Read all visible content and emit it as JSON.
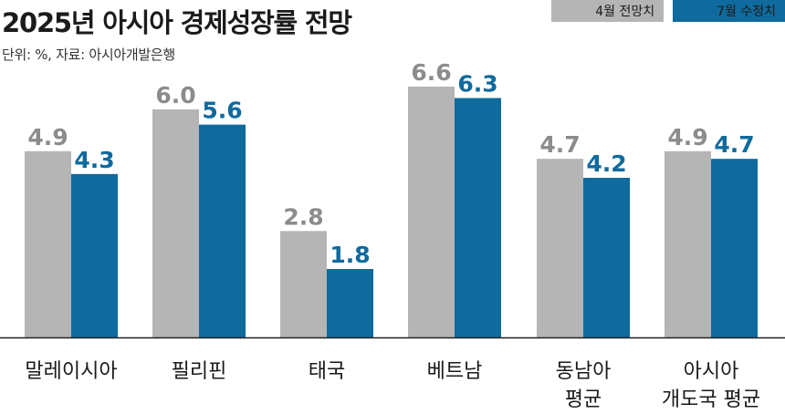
{
  "header": {
    "title": "2025년 아시아 경제성장률 전망",
    "subtitle": "단위: %, 자료: 아시아개발은행"
  },
  "colors": {
    "prev": "#b5b5b5",
    "revised": "#0f6a9d",
    "prev_label": "#8c8c8c",
    "revised_label": "#0f6a9d"
  },
  "chart_data": {
    "type": "bar",
    "title": "2025년 아시아 경제성장률 전망",
    "subtitle": "단위: %, 자료: 아시아개발은행",
    "categories": [
      "말레이시아",
      "필리핀",
      "태국",
      "베트남",
      "동남아\n평균",
      "아시아\n개도국 평균"
    ],
    "series": [
      {
        "name": "4월 전망치",
        "values": [
          4.9,
          6.0,
          2.8,
          6.6,
          4.7,
          4.9
        ]
      },
      {
        "name": "7월 수정치",
        "values": [
          4.3,
          5.6,
          1.8,
          6.3,
          4.2,
          4.7
        ]
      }
    ],
    "value_labels": [
      [
        "4.9",
        "6.0",
        "2.8",
        "6.6",
        "4.7",
        "4.9"
      ],
      [
        "4.3",
        "5.6",
        "1.8",
        "6.3",
        "4.2",
        "4.7"
      ]
    ],
    "ylim": [
      0,
      7.2
    ],
    "grid": false,
    "legend_position": "top-right"
  }
}
